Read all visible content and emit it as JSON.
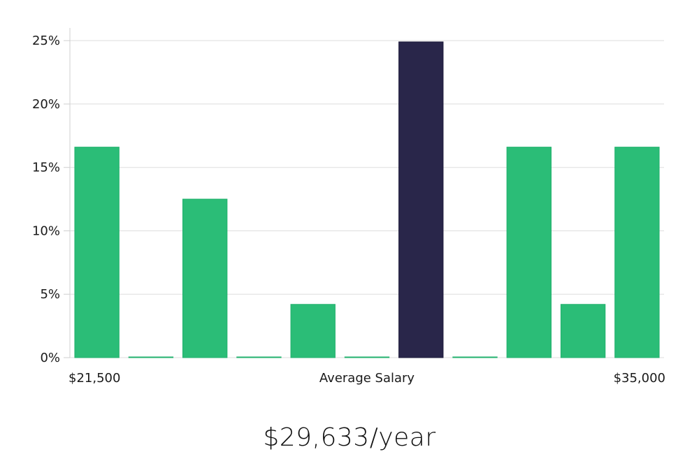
{
  "chart_data": {
    "type": "bar",
    "bins": 11,
    "values": [
      16.6,
      0,
      12.5,
      0,
      4.2,
      0,
      24.9,
      0,
      16.6,
      4.2,
      16.6
    ],
    "highlight_index": 6,
    "ylim": [
      0,
      26
    ],
    "yticks": [
      0,
      5,
      10,
      15,
      20,
      25
    ],
    "ytick_labels": [
      "0%",
      "5%",
      "10%",
      "15%",
      "20%",
      "25%"
    ],
    "x_min_label": "$21,500",
    "x_center_label": "Average Salary",
    "x_max_label": "$35,000",
    "grid": true,
    "colors": {
      "bar": "#2bbd77",
      "bar_edge": "#20b06c",
      "highlight": "#29264a",
      "grid": "#dedede",
      "axis": "#cfcfcf"
    }
  },
  "summary": {
    "average_salary": "$29,633/year"
  }
}
